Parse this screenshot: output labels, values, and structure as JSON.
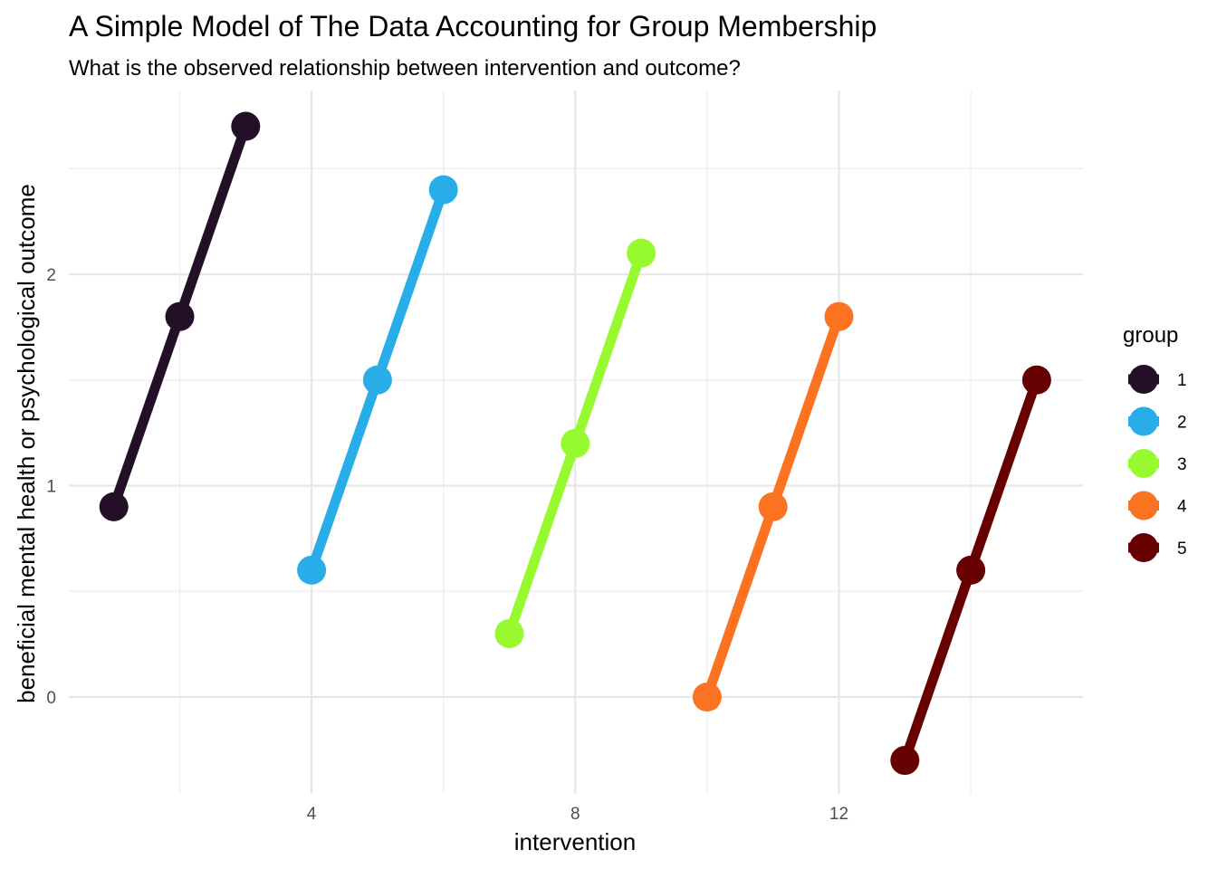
{
  "chart_data": {
    "type": "line",
    "title": "A Simple Model of The Data Accounting for Group Membership",
    "subtitle": "What is the observed relationship between intervention and outcome?",
    "xlabel": "intervention",
    "ylabel": "beneficial mental health or psychological outcome",
    "xlim": [
      0.5,
      15.5
    ],
    "ylim": [
      -0.45,
      2.85
    ],
    "x_ticks": [
      4,
      8,
      12
    ],
    "x_minor_ticks": [
      2,
      6,
      10,
      14
    ],
    "y_ticks": [
      0,
      1,
      2
    ],
    "y_minor_ticks": [
      0.5,
      1.5,
      2.5
    ],
    "grid": true,
    "legend": {
      "title": "group",
      "position": "right"
    },
    "series": [
      {
        "name": "1",
        "color": "#231028",
        "x": [
          1,
          2,
          3
        ],
        "y": [
          0.9,
          1.8,
          2.7
        ]
      },
      {
        "name": "2",
        "color": "#28ADE8",
        "x": [
          4,
          5,
          6
        ],
        "y": [
          0.6,
          1.5,
          2.4
        ]
      },
      {
        "name": "3",
        "color": "#96FA2F",
        "x": [
          7,
          8,
          9
        ],
        "y": [
          0.3,
          1.2,
          2.1
        ]
      },
      {
        "name": "4",
        "color": "#FB7221",
        "x": [
          10,
          11,
          12
        ],
        "y": [
          0.0,
          0.9,
          1.8
        ]
      },
      {
        "name": "5",
        "color": "#670000",
        "x": [
          13,
          14,
          15
        ],
        "y": [
          -0.3,
          0.6,
          1.5
        ]
      }
    ]
  }
}
